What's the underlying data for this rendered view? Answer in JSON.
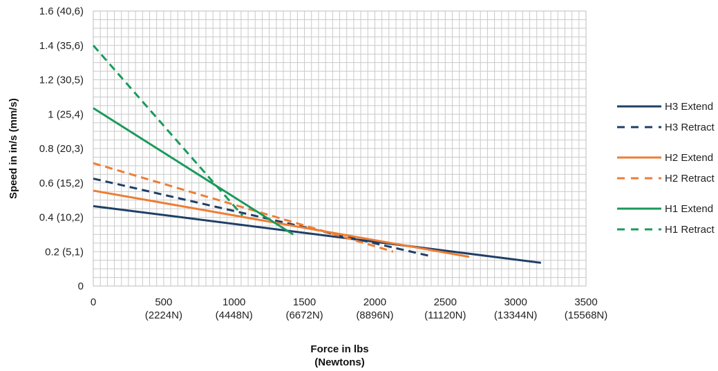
{
  "chart_data": {
    "type": "line",
    "xlabel": "Force in lbs",
    "xlabel_sub": "(Newtons)",
    "ylabel": "Speed in in/s (mm/s)",
    "xlim": [
      0,
      3500
    ],
    "ylim": [
      0,
      1.6
    ],
    "x_ticks": [
      {
        "value": 0,
        "label": "0",
        "sub": ""
      },
      {
        "value": 500,
        "label": "500",
        "sub": "(2224N)"
      },
      {
        "value": 1000,
        "label": "1000",
        "sub": "(4448N)"
      },
      {
        "value": 1500,
        "label": "1500",
        "sub": "(6672N)"
      },
      {
        "value": 2000,
        "label": "2000",
        "sub": "(8896N)"
      },
      {
        "value": 2500,
        "label": "2500",
        "sub": "(11120N)"
      },
      {
        "value": 3000,
        "label": "3000",
        "sub": "(13344N)"
      },
      {
        "value": 3500,
        "label": "3500",
        "sub": "(15568N)"
      }
    ],
    "y_ticks": [
      {
        "value": 0,
        "label": "0"
      },
      {
        "value": 0.2,
        "label": "0.2 (5,1)"
      },
      {
        "value": 0.4,
        "label": "0.4 (10,2)"
      },
      {
        "value": 0.6,
        "label": "0.6 (15,2)"
      },
      {
        "value": 0.8,
        "label": "0.8 (20,3)"
      },
      {
        "value": 1.0,
        "label": "1 (25,4)"
      },
      {
        "value": 1.2,
        "label": "1.2 (30,5)"
      },
      {
        "value": 1.4,
        "label": "1.4 (35,6)"
      },
      {
        "value": 1.6,
        "label": "1.6 (40,6)"
      }
    ],
    "grid": true,
    "legend_position": "right",
    "series": [
      {
        "name": "H3 Extend",
        "color": "#1f3f66",
        "dashed": false,
        "x": [
          0,
          3180
        ],
        "y": [
          0.465,
          0.135
        ]
      },
      {
        "name": "H3 Retract",
        "color": "#1f3f66",
        "dashed": true,
        "x": [
          0,
          2390
        ],
        "y": [
          0.625,
          0.175
        ]
      },
      {
        "name": "H2 Extend",
        "color": "#ee7d33",
        "dashed": false,
        "x": [
          0,
          2670
        ],
        "y": [
          0.555,
          0.17
        ]
      },
      {
        "name": "H2 Retract",
        "color": "#ee7d33",
        "dashed": true,
        "x": [
          0,
          2130
        ],
        "y": [
          0.715,
          0.2
        ]
      },
      {
        "name": "H1 Extend",
        "color": "#1a9a5c",
        "dashed": false,
        "x": [
          0,
          1420
        ],
        "y": [
          1.035,
          0.3
        ]
      },
      {
        "name": "H1 Retract",
        "color": "#1a9a5c",
        "dashed": true,
        "x": [
          0,
          1060
        ],
        "y": [
          1.4,
          0.41
        ]
      }
    ]
  }
}
